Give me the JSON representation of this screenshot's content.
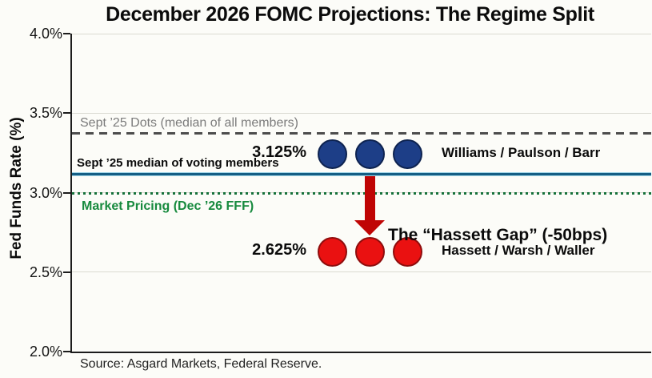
{
  "page": {
    "title": "December 2026 FOMC Projections: The Regime Split",
    "source_note": "Source: Asgard Markets, Federal Reserve."
  },
  "chart_data": {
    "type": "scatter",
    "title": "December 2026 FOMC Projections: The Regime Split",
    "xlabel": "",
    "ylabel": "Fed Funds Rate (%)",
    "ylim": [
      2.0,
      4.0
    ],
    "yticks": [
      4.0,
      3.5,
      3.0,
      2.5,
      2.0
    ],
    "ytick_labels": [
      "4.0%",
      "3.5%",
      "3.0%",
      "2.5%",
      "2.0%"
    ],
    "grid": "horizontal light gray at each 0.5% tick",
    "legend": "none",
    "reference_lines": [
      {
        "id": "sept25_dots_all",
        "value": 3.375,
        "style": "dashed",
        "color": "#4d4d4d",
        "label": "Sept ’25 Dots (median of all members)",
        "label_color": "#7b7b7b",
        "label_side": "above"
      },
      {
        "id": "sept25_voting_median",
        "value": 3.125,
        "style": "solid",
        "color": "#155e84",
        "label": "Sept ’25 median of voting members",
        "label_color": "#0b0b0b",
        "label_side": "above"
      },
      {
        "id": "market_pricing",
        "value": 3.0,
        "style": "dotted",
        "color": "#15713a",
        "label": "Market Pricing (Dec ’26 FFF)",
        "label_color": "#178a3e",
        "label_side": "below"
      }
    ],
    "series": [
      {
        "name": "Williams / Paulson / Barr",
        "value": 3.125,
        "value_label": "3.125%",
        "count": 3,
        "color": "#1d3e87",
        "outline": "#0e2350",
        "sit_above_line": true
      },
      {
        "name": "Hassett / Warsh / Waller",
        "value": 2.625,
        "value_label": "2.625%",
        "count": 3,
        "color": "#ea1111",
        "outline": "#8f0d0d",
        "sit_above_line": false
      }
    ],
    "annotation": {
      "text": "The “Hassett Gap” (-50bps)",
      "arrow": {
        "from_value": 3.125,
        "to_value": 2.625,
        "direction": "down",
        "color": "#c00505"
      }
    }
  }
}
